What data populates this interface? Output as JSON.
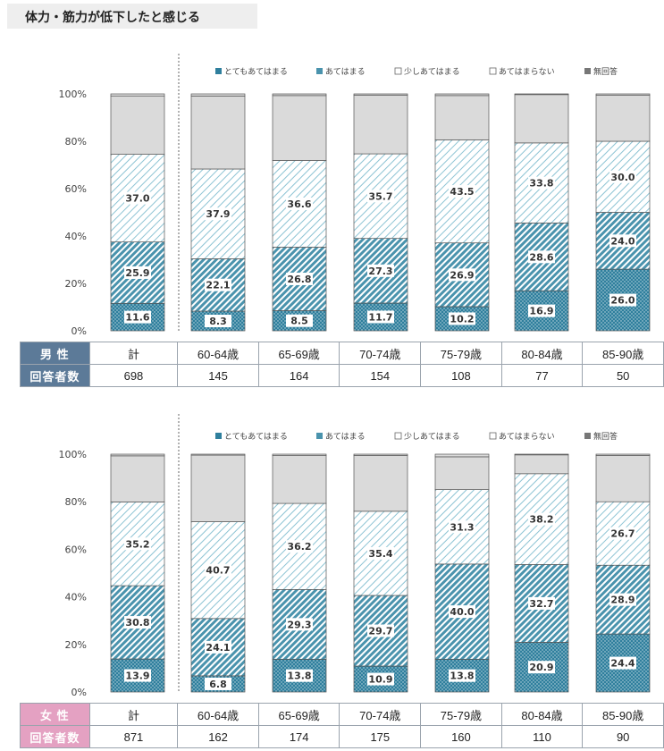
{
  "title": "体力・筋力が低下したと感じる",
  "legend": [
    "とてもあてはまる",
    "あてはまる",
    "少しあてはまる",
    "あてはまらない",
    "無回答"
  ],
  "colors": {
    "dark": "#2f7f9d",
    "mid": "#4a93ad",
    "light": "#6fb4c8",
    "gray": "#dadada",
    "male_header": "#5c7a98",
    "female_header": "#e4a1c2"
  },
  "y_ticks": [
    "0%",
    "20%",
    "40%",
    "60%",
    "80%",
    "100%"
  ],
  "categories": [
    "計",
    "60-64歳",
    "65-69歳",
    "70-74歳",
    "75-79歳",
    "80-84歳",
    "85-90歳"
  ],
  "panels": [
    {
      "gender": "男 性",
      "respondents_label": "回答者数",
      "respondents": [
        "698",
        "145",
        "164",
        "154",
        "108",
        "77",
        "50"
      ]
    },
    {
      "gender": "女 性",
      "respondents_label": "回答者数",
      "respondents": [
        "871",
        "162",
        "174",
        "175",
        "160",
        "110",
        "90"
      ]
    }
  ],
  "chart_data": [
    {
      "type": "bar",
      "stacked": true,
      "categories": [
        "計",
        "60-64歳",
        "65-69歳",
        "70-74歳",
        "75-79歳",
        "80-84歳",
        "85-90歳"
      ],
      "ylim": [
        0,
        100
      ],
      "series": [
        {
          "name": "とてもあてはまる",
          "values": [
            11.6,
            8.3,
            8.5,
            11.7,
            10.2,
            16.9,
            26.0
          ]
        },
        {
          "name": "あてはまる",
          "values": [
            25.9,
            22.1,
            26.8,
            27.3,
            26.9,
            28.6,
            24.0
          ]
        },
        {
          "name": "少しあてはまる",
          "values": [
            37.0,
            37.9,
            36.6,
            35.7,
            43.5,
            33.8,
            30.0
          ]
        },
        {
          "name": "あてはまらない",
          "values": [
            24.5,
            30.8,
            27.4,
            24.8,
            18.7,
            20.4,
            19.5
          ]
        },
        {
          "name": "無回答",
          "values": [
            1.0,
            0.9,
            0.7,
            0.5,
            0.7,
            0.3,
            0.5
          ]
        }
      ],
      "data_labels": [
        [
          "11.6",
          "8.3",
          "8.5",
          "11.7",
          "10.2",
          "16.9",
          "26.0"
        ],
        [
          "25.9",
          "22.1",
          "26.8",
          "27.3",
          "26.9",
          "28.6",
          "24.0"
        ],
        [
          "37.0",
          "37.9",
          "36.6",
          "35.7",
          "43.5",
          "33.8",
          "30.0"
        ]
      ]
    },
    {
      "type": "bar",
      "stacked": true,
      "categories": [
        "計",
        "60-64歳",
        "65-69歳",
        "70-74歳",
        "75-79歳",
        "80-84歳",
        "85-90歳"
      ],
      "ylim": [
        0,
        100
      ],
      "series": [
        {
          "name": "とてもあてはまる",
          "values": [
            13.9,
            6.8,
            13.8,
            10.9,
            13.8,
            20.9,
            24.4
          ]
        },
        {
          "name": "あてはまる",
          "values": [
            30.8,
            24.1,
            29.3,
            29.7,
            40.0,
            32.7,
            28.9
          ]
        },
        {
          "name": "少しあてはまる",
          "values": [
            35.2,
            40.7,
            36.2,
            35.4,
            31.3,
            38.2,
            26.7
          ]
        },
        {
          "name": "あてはまらない",
          "values": [
            19.4,
            28.0,
            20.1,
            23.5,
            13.8,
            7.9,
            19.5
          ]
        },
        {
          "name": "無回答",
          "values": [
            0.7,
            0.4,
            0.6,
            0.5,
            1.1,
            0.3,
            0.5
          ]
        }
      ],
      "data_labels": [
        [
          "13.9",
          "6.8",
          "13.8",
          "10.9",
          "13.8",
          "20.9",
          "24.4"
        ],
        [
          "30.8",
          "24.1",
          "29.3",
          "29.7",
          "40.0",
          "32.7",
          "28.9"
        ],
        [
          "35.2",
          "40.7",
          "36.2",
          "35.4",
          "31.3",
          "38.2",
          "26.7"
        ]
      ]
    }
  ]
}
